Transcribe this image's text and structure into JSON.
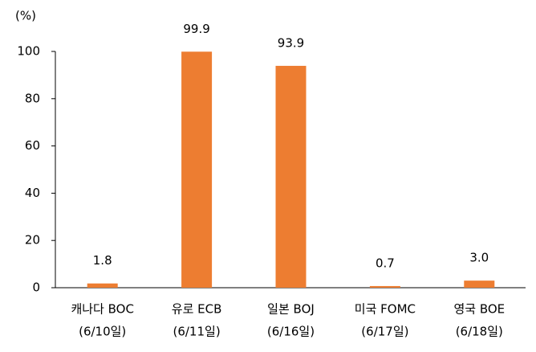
{
  "chart_data": {
    "type": "bar",
    "y_unit_label": "(%)",
    "categories": [
      [
        "캐나다 BOC",
        "(6/10일)"
      ],
      [
        "유로 ECB",
        "(6/11일)"
      ],
      [
        "일본 BOJ",
        "(6/16일)"
      ],
      [
        "미국 FOMC",
        "(6/17일)"
      ],
      [
        "영국 BOE",
        "(6/18일)"
      ]
    ],
    "values": [
      1.8,
      99.9,
      93.9,
      0.7,
      3.0
    ],
    "value_labels": [
      "1.8",
      "99.9",
      "93.9",
      "0.7",
      "3.0"
    ],
    "color": "#ed7d31",
    "ylim": [
      0,
      100
    ],
    "yticks": [
      0,
      20,
      40,
      60,
      80,
      100
    ],
    "grid": false
  }
}
